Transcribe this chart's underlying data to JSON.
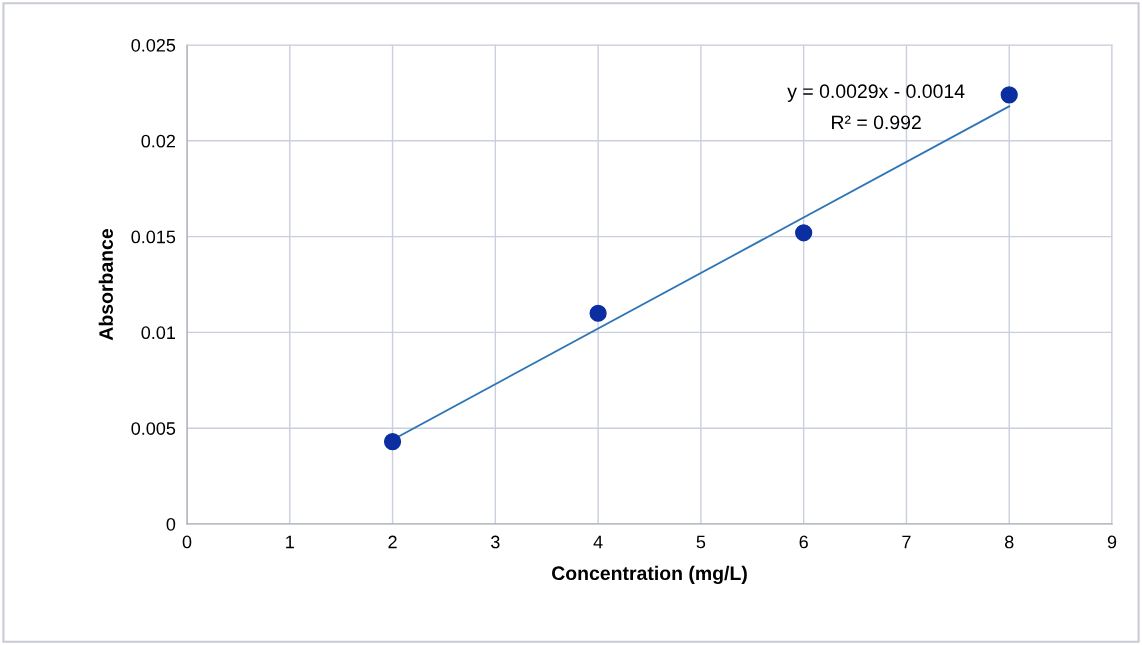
{
  "chart_data": {
    "type": "scatter",
    "xlabel": "Concentration (mg/L)",
    "ylabel": "Absorbance",
    "series": [
      {
        "color": "#0b2fa0",
        "x": [
          2,
          4,
          6,
          8
        ],
        "values": [
          0.0043,
          0.011,
          0.0152,
          0.0224
        ],
        "marker": "circle"
      },
      {
        "type": "line",
        "color": "#2e75b6",
        "x": [
          2,
          8
        ],
        "values": [
          0.0044,
          0.0218
        ],
        "marker": "none"
      }
    ],
    "annotations": [
      "y = 0.0029x - 0.0014",
      "R² = 0.992"
    ],
    "xlim": [
      0,
      9
    ],
    "xticks": [
      0,
      1,
      2,
      3,
      4,
      5,
      6,
      7,
      8,
      9
    ],
    "ylim": [
      0,
      0.025
    ],
    "yticks": [
      {
        "value": 0,
        "label": "0"
      },
      0.005,
      0.01,
      0.015,
      0.02,
      0.025
    ],
    "grid": true
  }
}
